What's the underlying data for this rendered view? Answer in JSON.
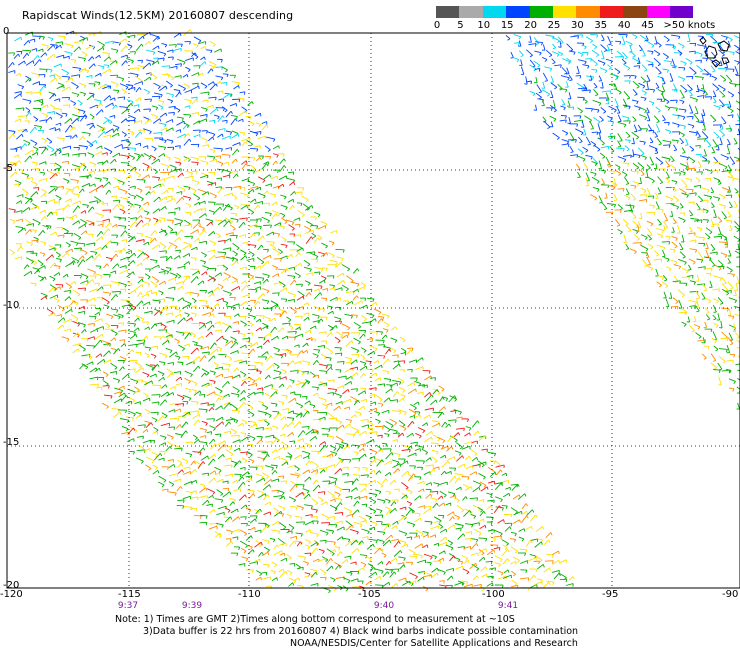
{
  "title": "Rapidscat Winds(12.5KM) 20160807 descending",
  "legend": {
    "unit_label": ">50 knots",
    "bins": [
      {
        "label": "0",
        "color": "#555555"
      },
      {
        "label": "5",
        "color": "#aaaaaa"
      },
      {
        "label": "10",
        "color": "#00d8f0"
      },
      {
        "label": "15",
        "color": "#0044ff"
      },
      {
        "label": "20",
        "color": "#00b000"
      },
      {
        "label": "25",
        "color": "#ffe000"
      },
      {
        "label": "30",
        "color": "#ff8c00"
      },
      {
        "label": "35",
        "color": "#ee1c1c"
      },
      {
        "label": "40",
        "color": "#8b4513"
      },
      {
        "label": "45",
        "color": "#ff00ff"
      },
      {
        "label": "",
        "color": "#7000cc"
      }
    ]
  },
  "lat_labels": [
    "0",
    "-5",
    "-10",
    "-15",
    "-20"
  ],
  "lon_labels": [
    "-120",
    "-115",
    "-110",
    "-105",
    "-100",
    "-95",
    "-90"
  ],
  "time_labels": [
    "9:37",
    "9:39",
    "9:40",
    "9:41"
  ],
  "notes": {
    "line1": "Note: 1) Times are GMT 2)Times along bottom correspond to measurement at ~10S",
    "line2": "3)Data buffer is 22 hrs from 20160807 4) Black wind barbs indicate possible contamination",
    "line3": "NOAA/NESDIS/Center for Satellite Applications and Research"
  }
}
